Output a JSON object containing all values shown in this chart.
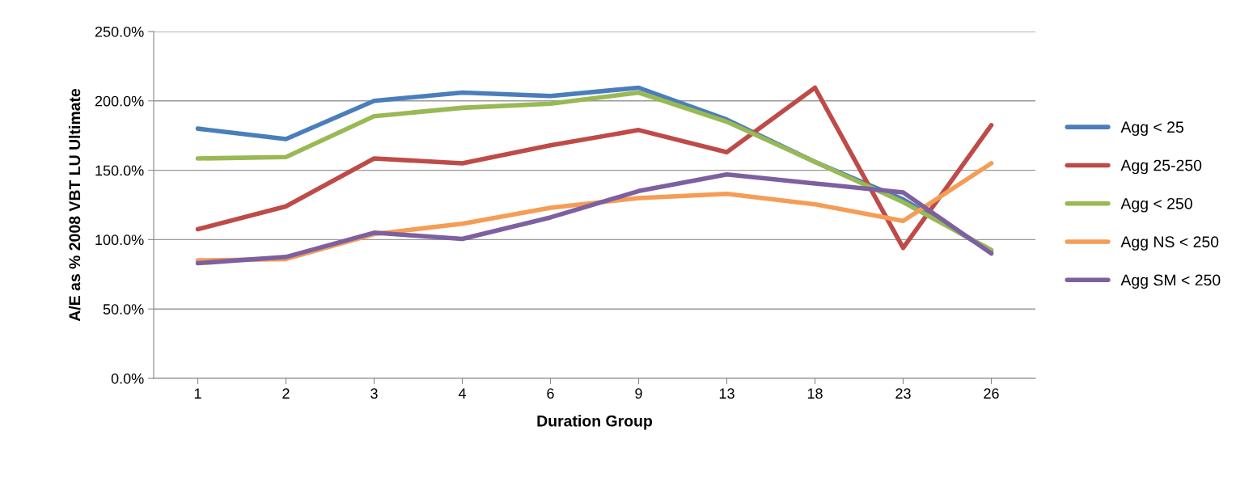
{
  "chart_data": {
    "type": "line",
    "xlabel": "Duration Group",
    "ylabel": "A/E as % 2008 VBT LU Ultimate",
    "categories": [
      "1",
      "2",
      "3",
      "4",
      "6",
      "9",
      "13",
      "18",
      "23",
      "26"
    ],
    "series": [
      {
        "name": "Agg < 25",
        "color": "#4a7ebb",
        "values": [
          180,
          172.5,
          200,
          206,
          203.5,
          209.5,
          186.5,
          156,
          129,
          91.5
        ]
      },
      {
        "name": "Agg 25-250",
        "color": "#be4b48",
        "values": [
          107.5,
          124,
          158.5,
          155,
          168,
          179,
          163,
          209.5,
          94,
          182.5
        ]
      },
      {
        "name": "Agg < 250",
        "color": "#98b954",
        "values": [
          158.5,
          159.5,
          189,
          195,
          198,
          206,
          185,
          156,
          127,
          92.5
        ]
      },
      {
        "name": "Agg NS < 250",
        "color": "#f59d56",
        "values": [
          85,
          86,
          104,
          111.5,
          123,
          130,
          133,
          125.5,
          113.5,
          155
        ]
      },
      {
        "name": "Agg SM < 250",
        "color": "#7d60a0",
        "values": [
          83,
          87.5,
          105,
          100.5,
          116,
          135,
          147,
          140.5,
          134,
          90
        ]
      }
    ],
    "ylim": [
      0,
      250
    ],
    "yticks": [
      {
        "value": 0,
        "label": "0.0%"
      },
      {
        "value": 50,
        "label": "50.0%"
      },
      {
        "value": 100,
        "label": "100.0%"
      },
      {
        "value": 150,
        "label": "150.0%"
      },
      {
        "value": 200,
        "label": "200.0%"
      },
      {
        "value": 250,
        "label": "250.0%"
      }
    ],
    "grid": "y",
    "legend": "right",
    "marker": "none",
    "line_style": "solid"
  }
}
